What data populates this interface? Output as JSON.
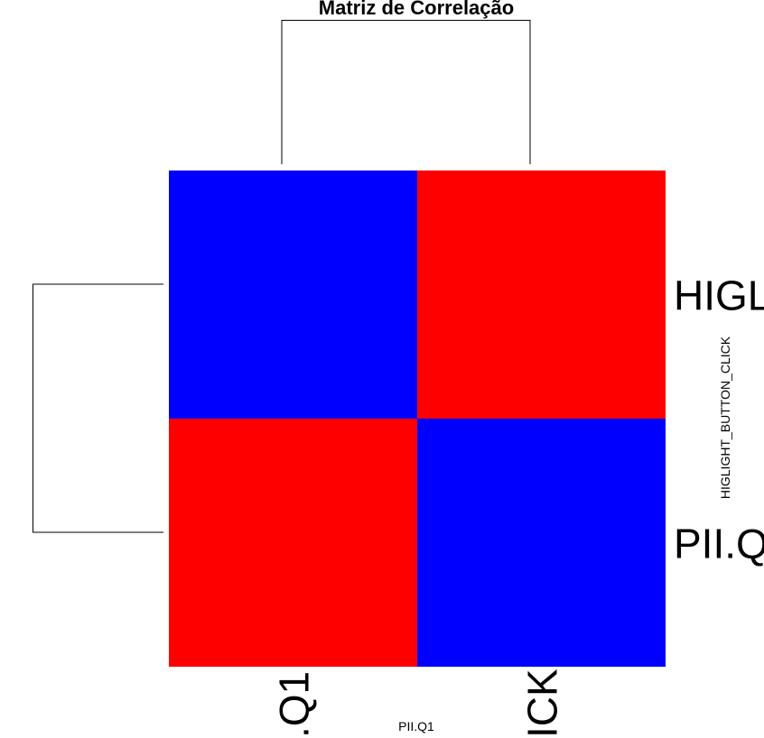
{
  "chart_data": {
    "type": "heatmap",
    "title": "Matriz de Correlação",
    "xlabel": "PII.Q1",
    "ylabel": "HIGLIGHT_BUTTON_CLICK",
    "rows": [
      "HIGLIGHT_BUTTON_CLICK",
      "PII.Q1"
    ],
    "cols": [
      "PII.Q1",
      "HIGLIGHT_BUTTON_CLICK"
    ],
    "row_tick_labels": [
      "HIGL",
      "PII.Q"
    ],
    "col_tick_labels": [
      ".Q1",
      "ICK"
    ],
    "values": [
      [
        -1,
        1
      ],
      [
        1,
        -1
      ]
    ],
    "colors": {
      "low": "#0000ff",
      "high": "#ff0000"
    },
    "row_dendrogram": true,
    "col_dendrogram": true,
    "grid": false
  }
}
